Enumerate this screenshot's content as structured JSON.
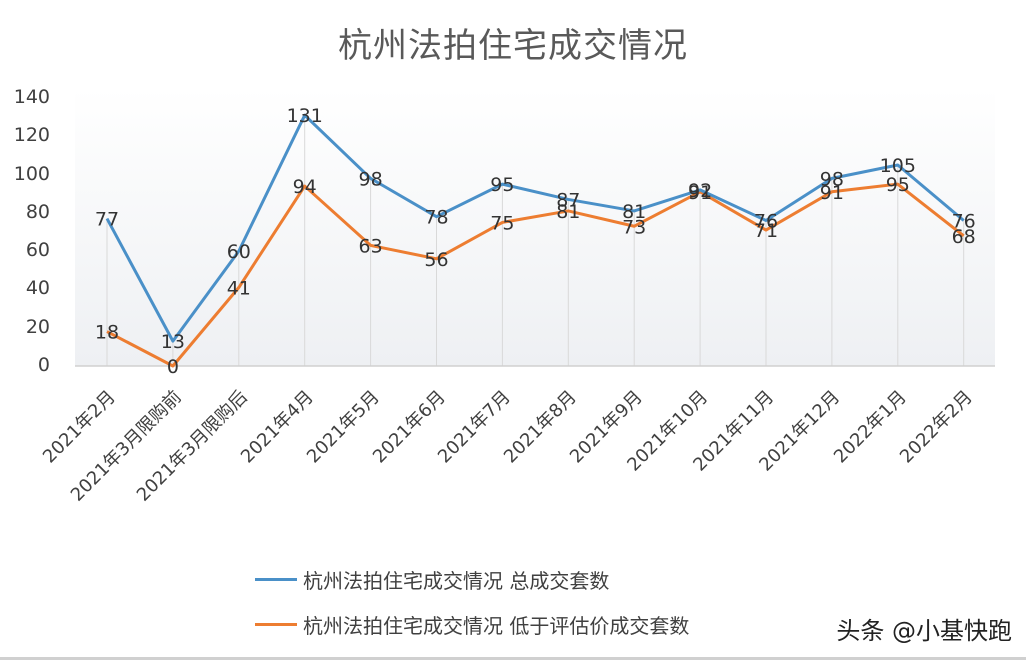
{
  "chart_data": {
    "type": "line",
    "title": "杭州法拍住宅成交情况",
    "xlabel": "",
    "ylabel": "",
    "ylim": [
      0,
      140
    ],
    "yticks": [
      0,
      20,
      40,
      60,
      80,
      100,
      120,
      140
    ],
    "grid": "vertical drop lines at each category",
    "legend_position": "bottom",
    "categories": [
      "2021年2月",
      "2021年3月限购前",
      "2021年3月限购后",
      "2021年4月",
      "2021年5月",
      "2021年6月",
      "2021年7月",
      "2021年8月",
      "2021年9月",
      "2021年10月",
      "2021年11月",
      "2021年12月",
      "2022年1月",
      "2022年2月"
    ],
    "series": [
      {
        "name": "杭州法拍住宅成交情况 总成交套数",
        "color": "#4A90C8",
        "values": [
          77,
          13,
          60,
          131,
          98,
          78,
          95,
          87,
          81,
          92,
          76,
          98,
          105,
          76
        ]
      },
      {
        "name": "杭州法拍住宅成交情况 低于评估价成交套数",
        "color": "#ED7D31",
        "values": [
          18,
          0,
          41,
          94,
          63,
          56,
          75,
          81,
          73,
          91,
          71,
          91,
          95,
          68
        ]
      }
    ]
  },
  "chart": {
    "title": "杭州法拍住宅成交情况",
    "legend": [
      {
        "label": "杭州法拍住宅成交情况 总成交套数",
        "color": "#4A90C8"
      },
      {
        "label": "杭州法拍住宅成交情况 低于评估价成交套数",
        "color": "#ED7D31"
      }
    ]
  },
  "watermark": "头条 @小基快跑"
}
